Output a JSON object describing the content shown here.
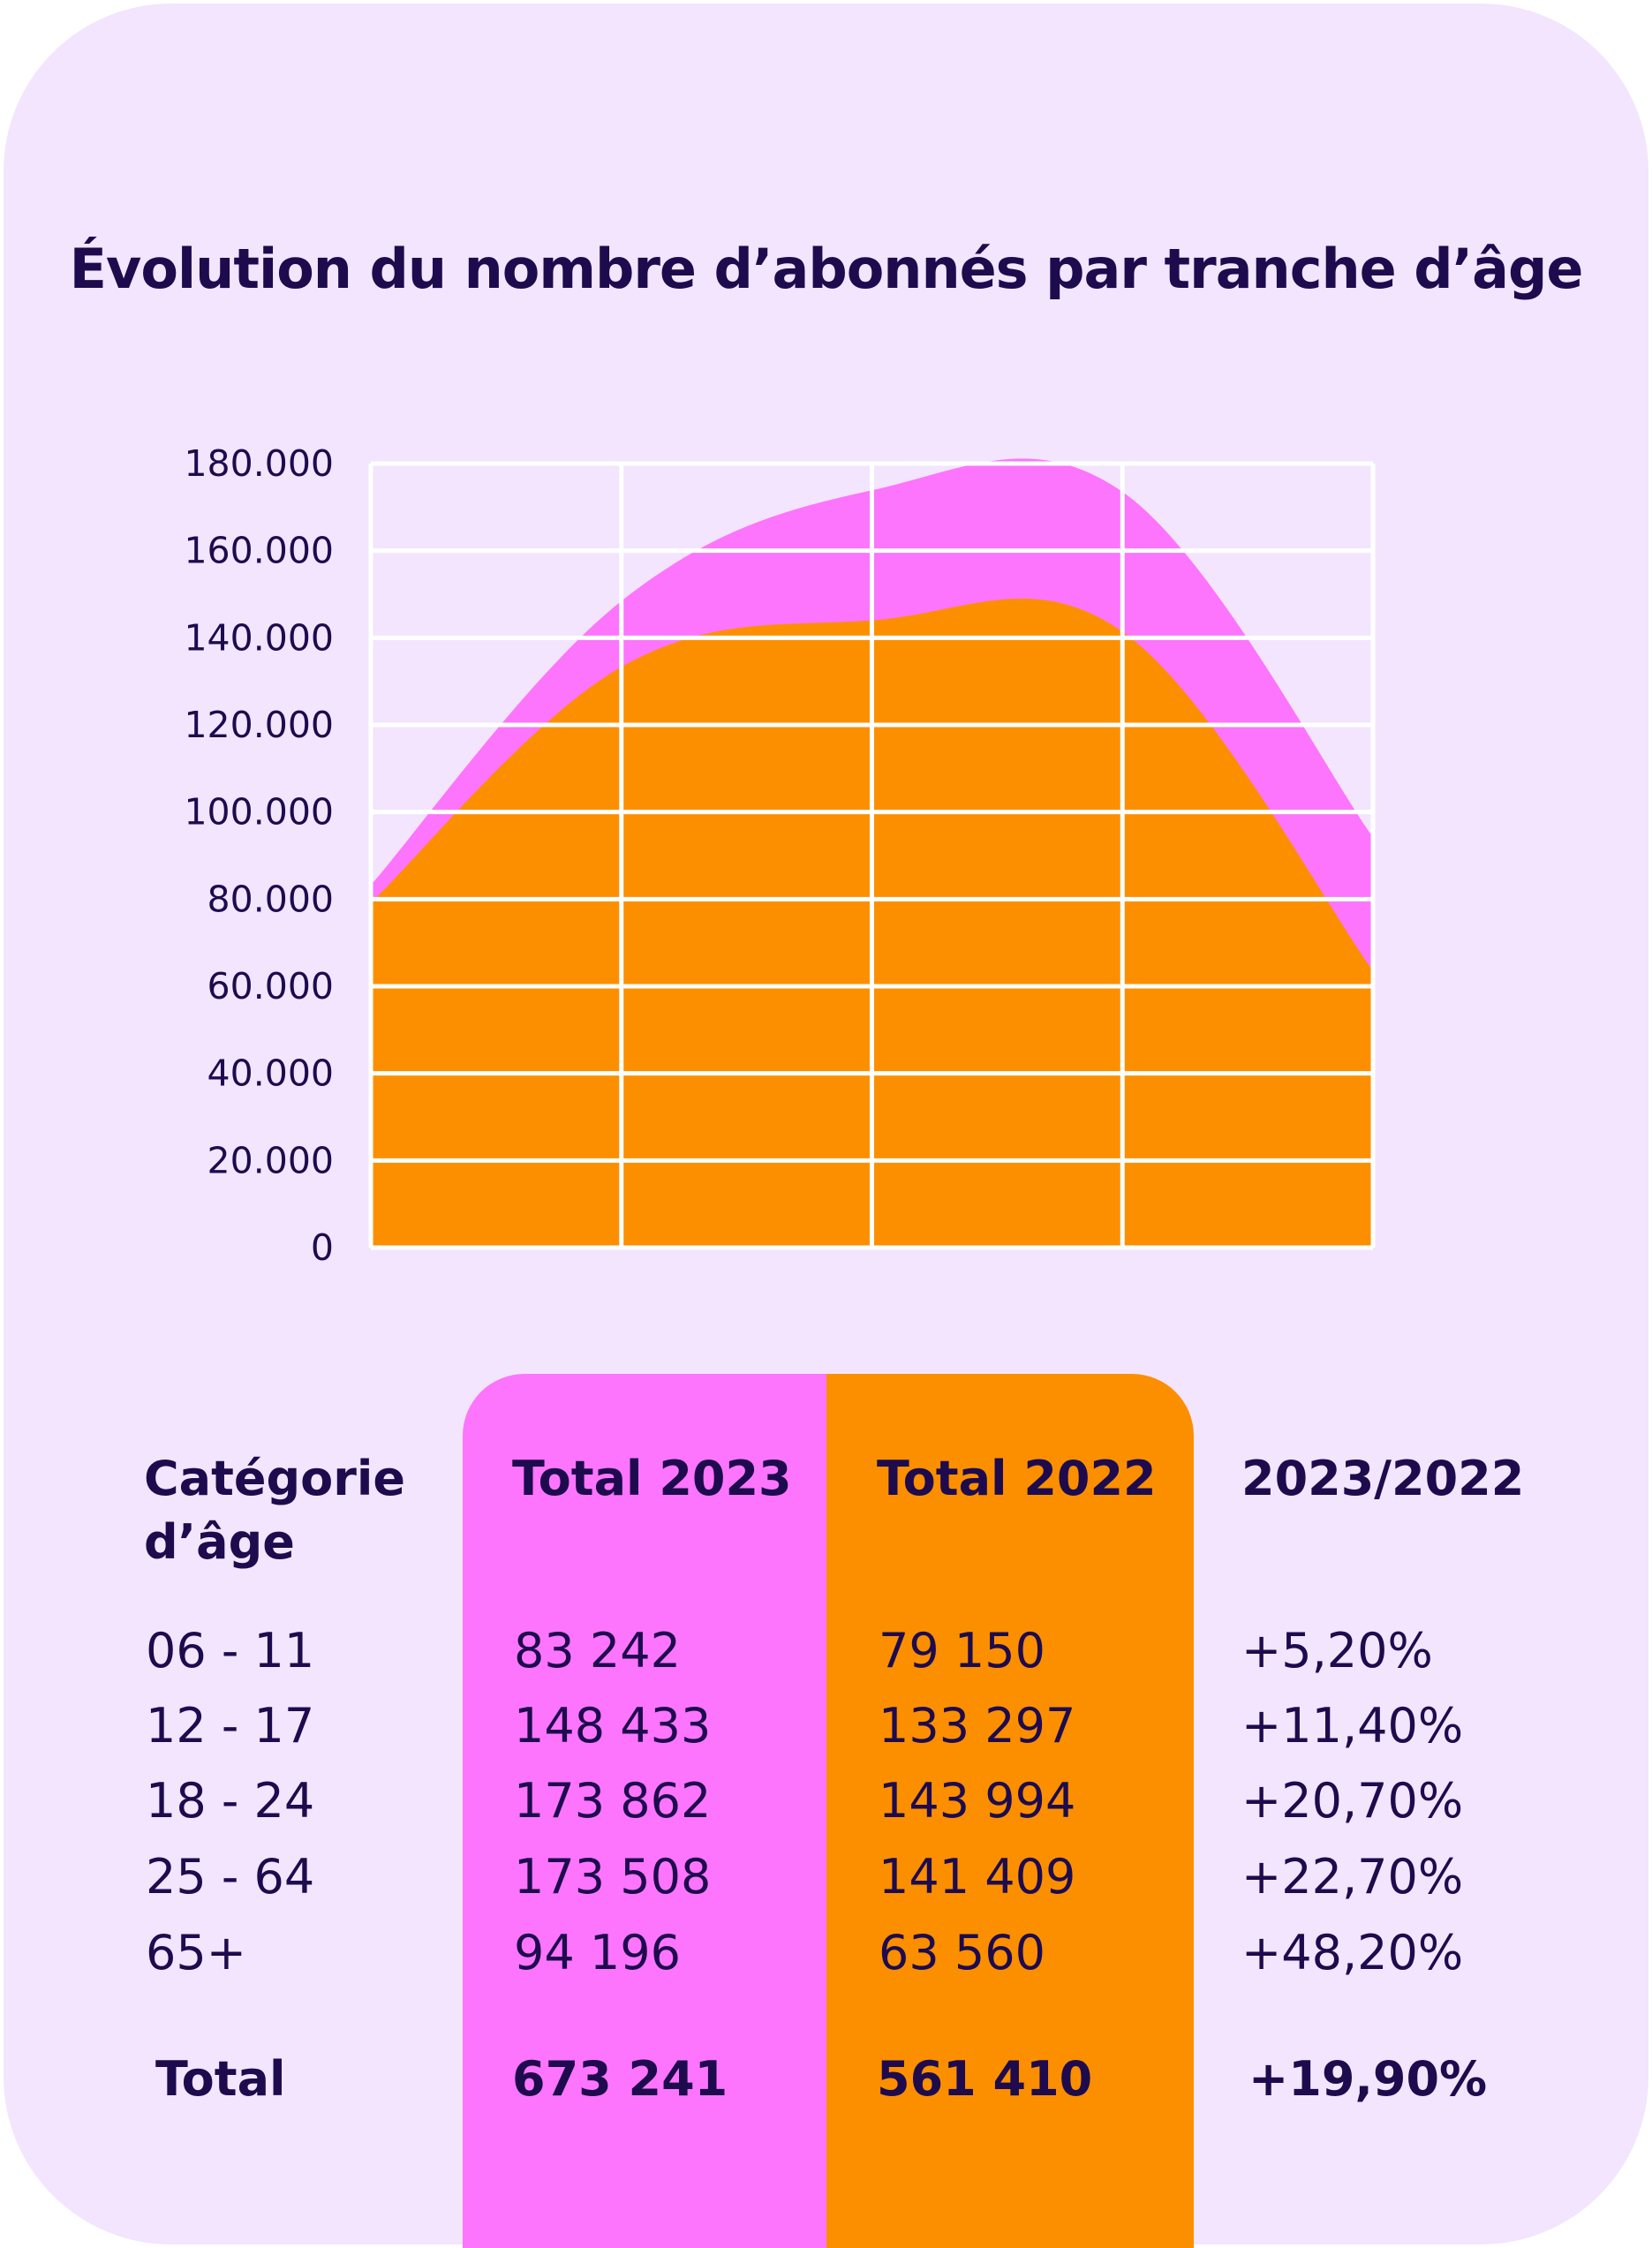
{
  "title": "Évolution du nombre d’abonnés par tranche d’âge",
  "colors": {
    "background": "#f2e5fd",
    "series_2023": "#fc75fc",
    "series_2022": "#fc8f00",
    "text": "#1d0b4e",
    "grid": "#ffffff"
  },
  "chart_data": {
    "type": "area",
    "categories": [
      "06 - 11",
      "12 - 17",
      "18 - 24",
      "25 - 64",
      "65+"
    ],
    "series": [
      {
        "name": "Total 2023",
        "values": [
          83242,
          148433,
          173862,
          173508,
          94196
        ],
        "color": "#fc75fc"
      },
      {
        "name": "Total 2022",
        "values": [
          79150,
          133297,
          143994,
          141409,
          63560
        ],
        "color": "#fc8f00"
      }
    ],
    "yticks": [
      "0",
      "20.000",
      "40.000",
      "60.000",
      "80.000",
      "100.000",
      "120.000",
      "140.000",
      "160.000",
      "180.000"
    ],
    "ylim": [
      0,
      180000
    ],
    "grid": true,
    "xlabel": "",
    "ylabel": ""
  },
  "table": {
    "headers": {
      "category_line1": "Catégorie",
      "category_line2": "d’âge",
      "total_2023": "Total 2023",
      "total_2022": "Total 2022",
      "ratio": "2023/2022"
    },
    "rows": [
      {
        "category": "06 - 11",
        "total_2023": "83 242",
        "total_2022": "79 150",
        "ratio": "+5,20%"
      },
      {
        "category": "12 - 17",
        "total_2023": "148 433",
        "total_2022": "133 297",
        "ratio": "+11,40%"
      },
      {
        "category": "18 - 24",
        "total_2023": "173 862",
        "total_2022": "143 994",
        "ratio": "+20,70%"
      },
      {
        "category": "25 - 64",
        "total_2023": "173 508",
        "total_2022": "141 409",
        "ratio": "+22,70%"
      },
      {
        "category": "65+",
        "total_2023": "94 196",
        "total_2022": "63 560",
        "ratio": "+48,20%"
      }
    ],
    "total": {
      "label": "Total",
      "total_2023": "673 241",
      "total_2022": "561 410",
      "ratio": "+19,90%"
    }
  }
}
